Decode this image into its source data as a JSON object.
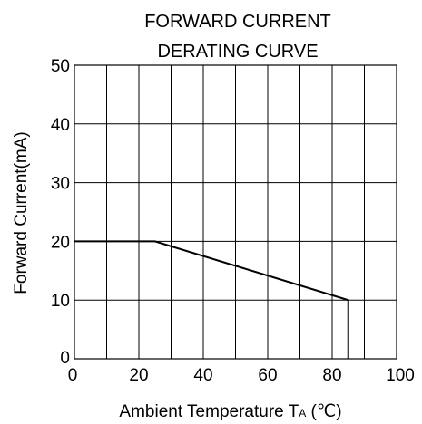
{
  "chart_data": {
    "type": "line",
    "title": [
      "FORWARD CURRENT",
      "DERATING CURVE"
    ],
    "xlabel": {
      "main": "Ambient Temperature T",
      "subscript": "A",
      "unit": " (℃)"
    },
    "ylabel": "Forward Current(mA)",
    "xlim": [
      0,
      100
    ],
    "ylim": [
      0,
      50
    ],
    "x_ticks": [
      0,
      20,
      40,
      60,
      80,
      100
    ],
    "y_ticks": [
      0,
      10,
      20,
      30,
      40,
      50
    ],
    "x_grid_step": 10,
    "y_grid_step": 10,
    "grid": true,
    "series": [
      {
        "x": [
          0,
          25,
          85,
          85
        ],
        "y": [
          20,
          20,
          10,
          0
        ]
      }
    ]
  }
}
